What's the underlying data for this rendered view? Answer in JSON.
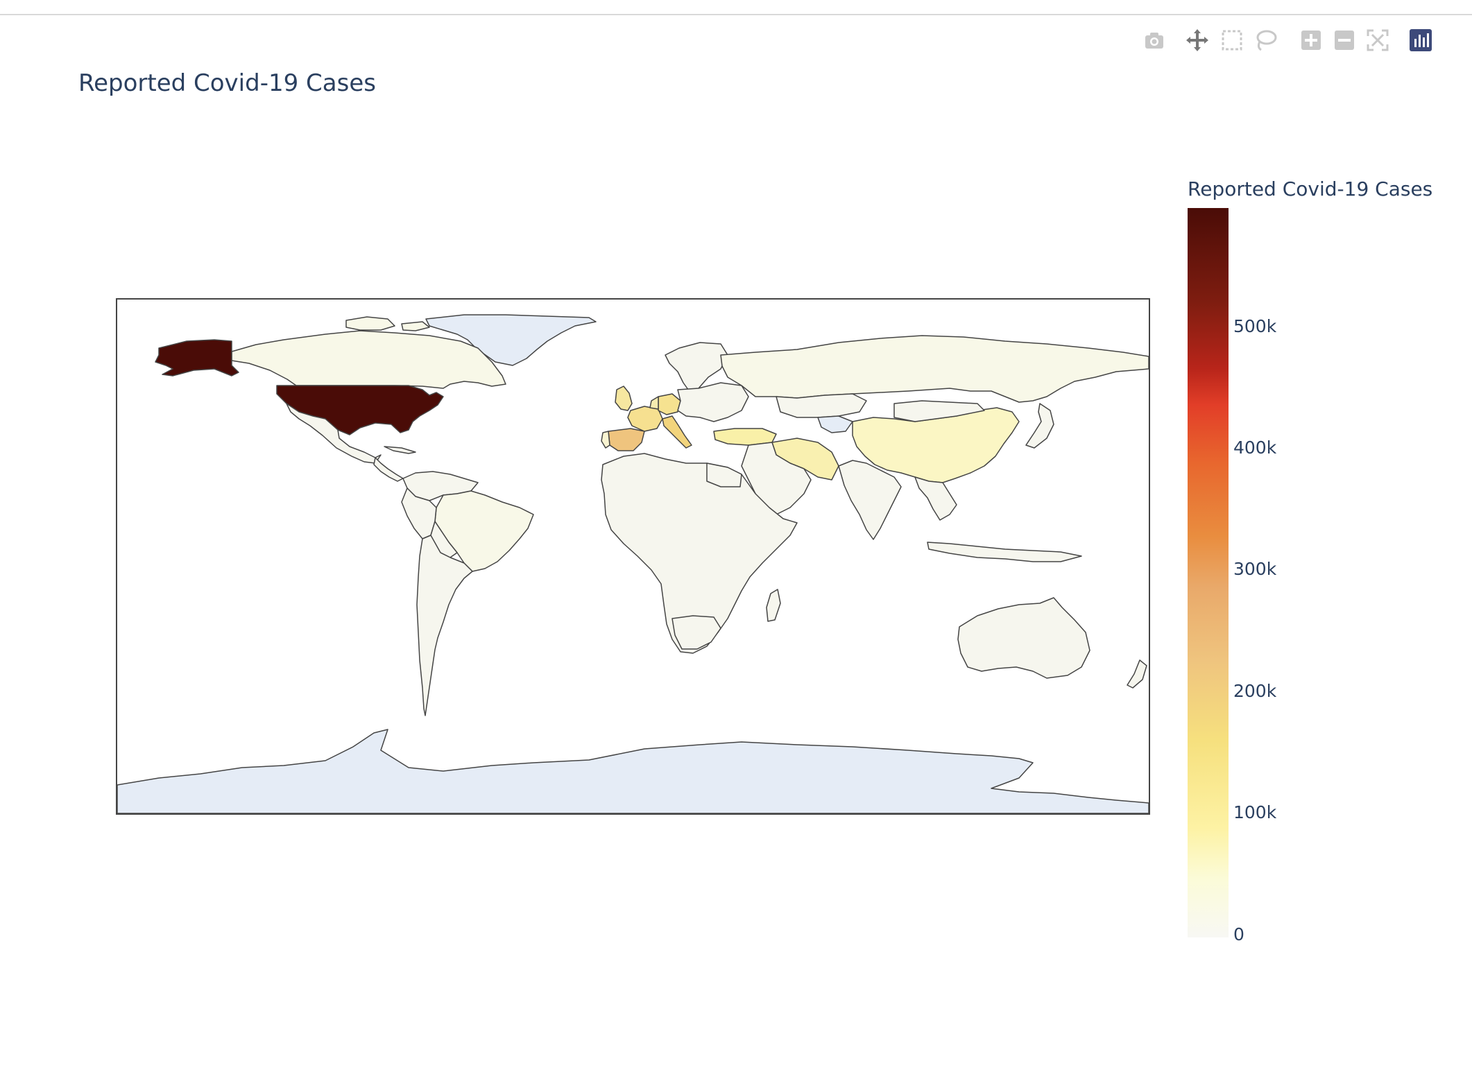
{
  "modebar": {
    "buttons": [
      {
        "icon": "camera-icon",
        "title": "Download plot as a png"
      },
      {
        "icon": "pan-icon",
        "title": "Pan"
      },
      {
        "icon": "box-select-icon",
        "title": "Box Select"
      },
      {
        "icon": "lasso-select-icon",
        "title": "Lasso Select"
      },
      {
        "icon": "zoom-in-icon",
        "title": "Zoom in"
      },
      {
        "icon": "zoom-out-icon",
        "title": "Zoom out"
      },
      {
        "icon": "reset-view-icon",
        "title": "Reset"
      },
      {
        "icon": "plotly-logo-icon",
        "title": "Produced with Plotly"
      }
    ]
  },
  "chart_data": {
    "type": "choropleth",
    "title": "Reported Covid-19 Cases",
    "projection": "equirectangular",
    "colorbar": {
      "title": "Reported Covid-19 Cases",
      "range": [
        0,
        600000
      ],
      "ticks": [
        {
          "value": 0,
          "label": "0"
        },
        {
          "value": 100000,
          "label": "100k"
        },
        {
          "value": 200000,
          "label": "200k"
        },
        {
          "value": 300000,
          "label": "300k"
        },
        {
          "value": 400000,
          "label": "400k"
        },
        {
          "value": 500000,
          "label": "500k"
        }
      ],
      "colorscale": [
        "#f8f8f4",
        "#fdf5b0",
        "#f6e07e",
        "#efc47e",
        "#e9a96a",
        "#e98d3f",
        "#e23e28",
        "#b8251a",
        "#4a0c07"
      ]
    },
    "regions": [
      {
        "name": "United States",
        "value": 600000
      },
      {
        "name": "Spain",
        "value": 170000
      },
      {
        "name": "Italy",
        "value": 160000
      },
      {
        "name": "France",
        "value": 120000
      },
      {
        "name": "Germany",
        "value": 130000
      },
      {
        "name": "United Kingdom",
        "value": 90000
      },
      {
        "name": "China",
        "value": 83000
      },
      {
        "name": "Iran",
        "value": 75000
      },
      {
        "name": "Turkey",
        "value": 65000
      },
      {
        "name": "Russia",
        "value": 25000
      },
      {
        "name": "Canada",
        "value": 26000
      },
      {
        "name": "Brazil",
        "value": 25000
      },
      {
        "name": "Belgium",
        "value": 33000
      },
      {
        "name": "Netherlands",
        "value": 28000
      },
      {
        "name": "Switzerland",
        "value": 26000
      },
      {
        "name": "Portugal",
        "value": 18000
      },
      {
        "name": "India",
        "value": 10000
      },
      {
        "name": "Australia",
        "value": 6400
      },
      {
        "name": "Mexico",
        "value": 5000
      },
      {
        "name": "Peru",
        "value": 10000
      },
      {
        "name": "South Africa",
        "value": 2500
      },
      {
        "name": "Egypt",
        "value": 2500
      },
      {
        "name": "Saudi Arabia",
        "value": 6000
      },
      {
        "name": "Japan",
        "value": 8000
      },
      {
        "name": "Kazakhstan",
        "value": 1000
      },
      {
        "name": "Argentina",
        "value": 2500
      },
      {
        "name": "Greenland",
        "value": null
      },
      {
        "name": "Antarctica",
        "value": null
      }
    ]
  }
}
